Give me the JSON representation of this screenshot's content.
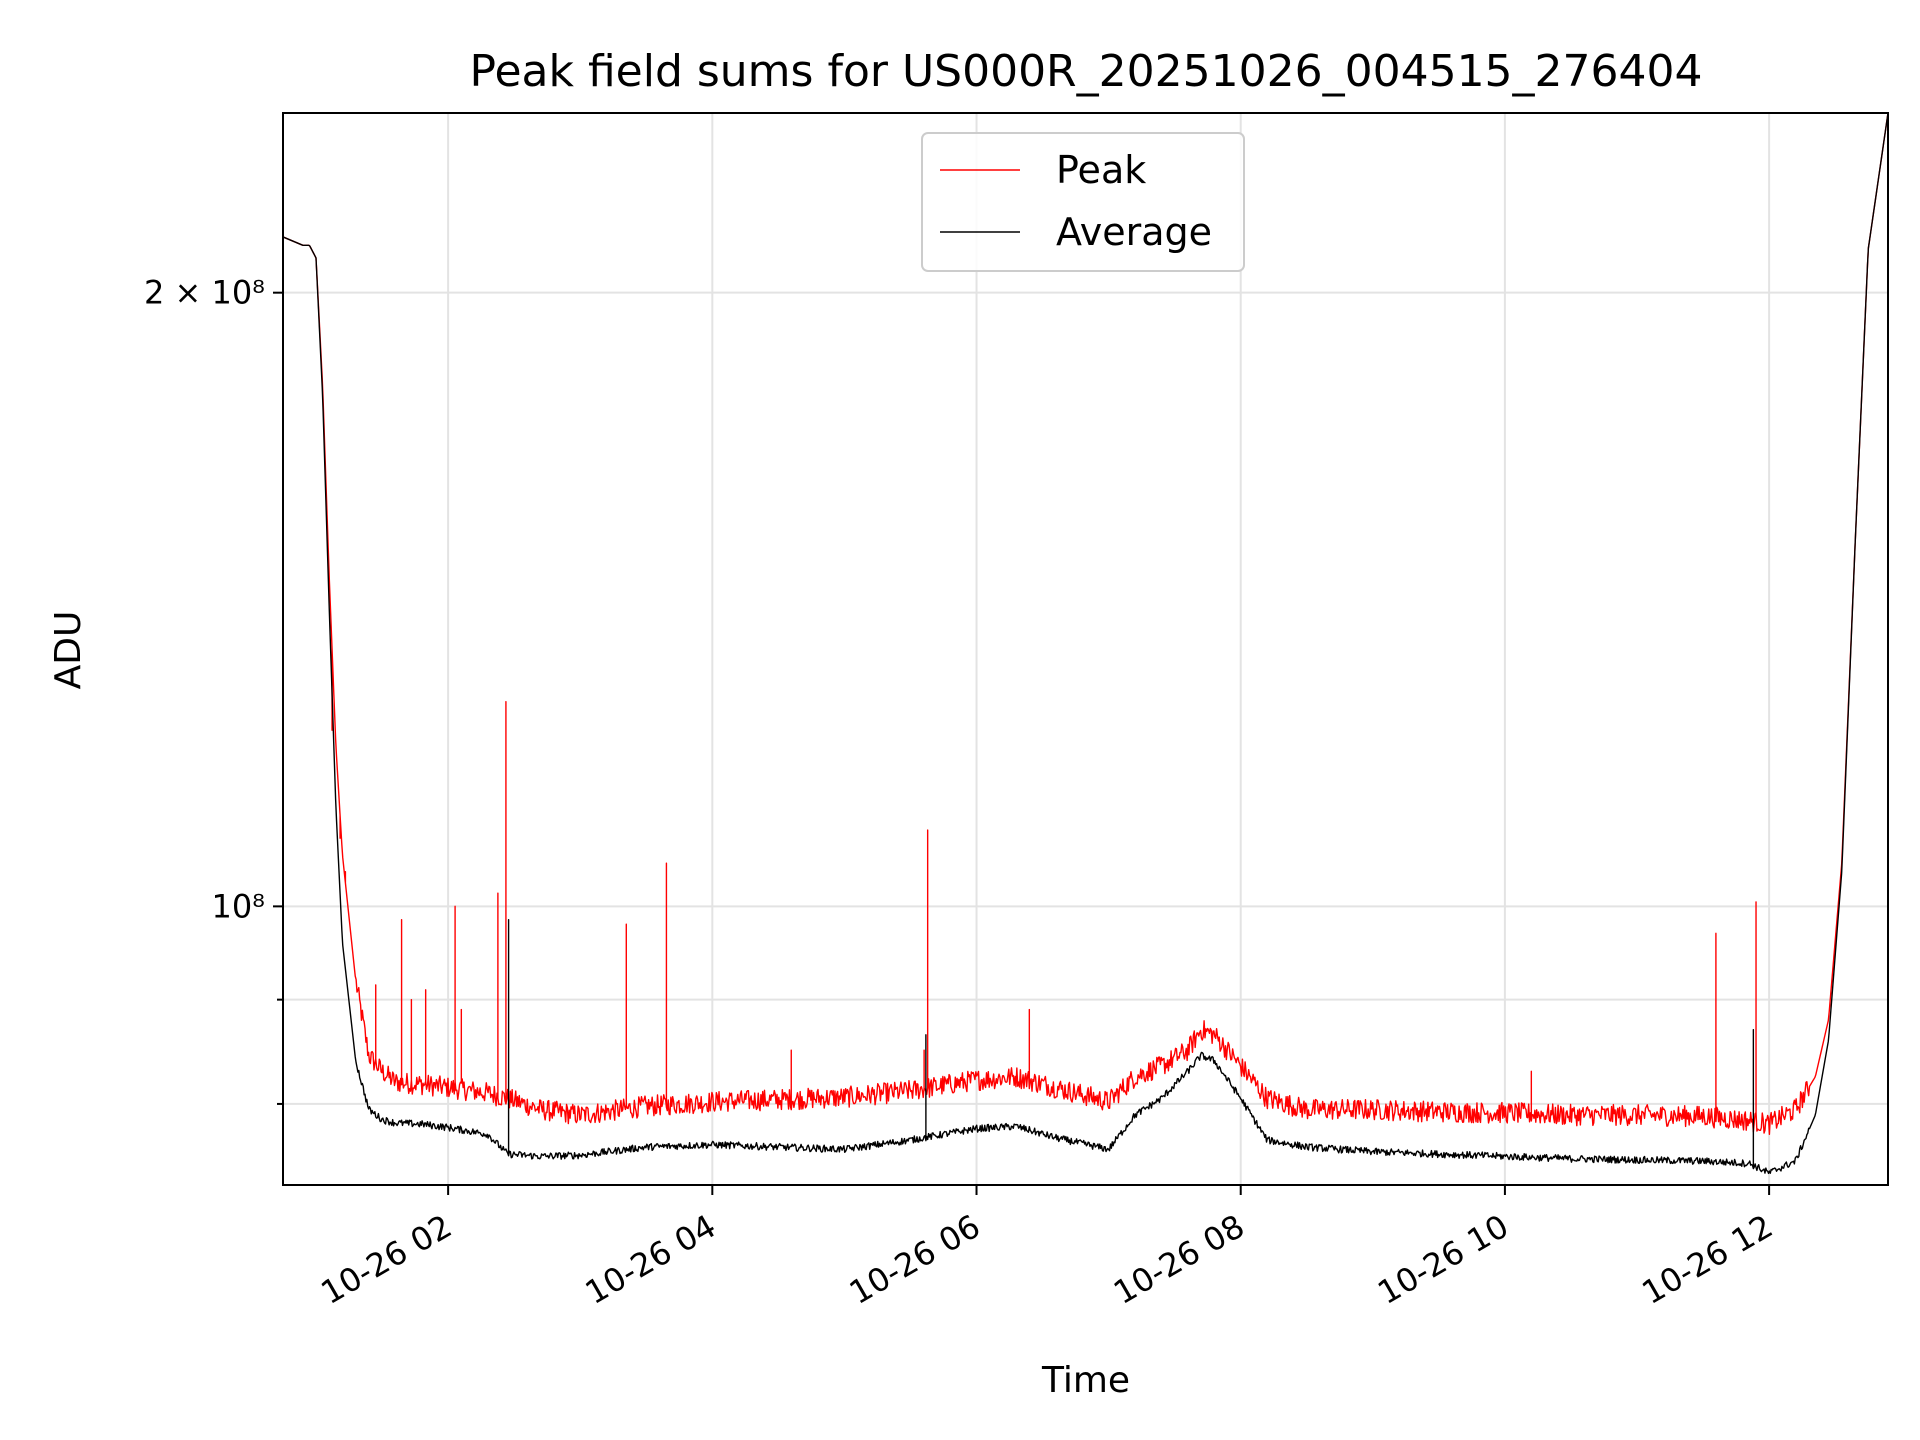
{
  "chart_data": {
    "type": "line",
    "title": "Peak field sums for US000R_20251026_004515_276404",
    "xlabel": "Time",
    "ylabel": "ADU",
    "yscale": "log",
    "grid": true,
    "legend_location": "upper-center",
    "xlim_hours": [
      0.75,
      12.9
    ],
    "ylim": [
      73000000,
      245000000
    ],
    "x_unit": "hours since 2025-10-26 00:00",
    "x_ticks": [
      {
        "value": 2,
        "label": "10-26 02"
      },
      {
        "value": 4,
        "label": "10-26 04"
      },
      {
        "value": 6,
        "label": "10-26 06"
      },
      {
        "value": 8,
        "label": "10-26 08"
      },
      {
        "value": 10,
        "label": "10-26 10"
      },
      {
        "value": 12,
        "label": "10-26 12"
      }
    ],
    "y_ticks": [
      {
        "value": 200000000,
        "label": "2 × 10⁸",
        "major": true
      },
      {
        "value": 100000000,
        "label": "10⁸",
        "major": true
      },
      {
        "value": 90000000,
        "label": "",
        "major": false
      },
      {
        "value": 80000000,
        "label": "",
        "major": false
      }
    ],
    "series": [
      {
        "name": "Peak",
        "color": "#ff0000",
        "x": [
          0.75,
          0.9,
          0.95,
          1.0,
          1.05,
          1.1,
          1.15,
          1.2,
          1.3,
          1.4,
          1.5,
          1.6,
          1.8,
          2.0,
          2.3,
          2.45,
          2.7,
          3.0,
          3.5,
          4.0,
          4.5,
          5.0,
          5.5,
          6.0,
          6.3,
          6.6,
          7.0,
          7.2,
          7.4,
          7.6,
          7.7,
          7.8,
          8.0,
          8.2,
          8.5,
          9.0,
          9.5,
          10.0,
          10.5,
          11.0,
          11.5,
          11.85,
          12.0,
          12.2,
          12.35,
          12.45,
          12.55,
          12.65,
          12.75,
          12.9
        ],
        "values": [
          213000000,
          211000000,
          211000000,
          208000000,
          180000000,
          145000000,
          120000000,
          106000000,
          92000000,
          84500000,
          83000000,
          82000000,
          81800000,
          81500000,
          81000000,
          80500000,
          79500000,
          79000000,
          79800000,
          80200000,
          80400000,
          80600000,
          81200000,
          82200000,
          82500000,
          81500000,
          80200000,
          82500000,
          83500000,
          85000000,
          87000000,
          86500000,
          83500000,
          80500000,
          79500000,
          79500000,
          79300000,
          79200000,
          79000000,
          79000000,
          78900000,
          78500000,
          78200000,
          79500000,
          82500000,
          88000000,
          105000000,
          150000000,
          210000000,
          245000000
        ],
        "spikes": [
          {
            "x": 1.12,
            "value": 122000000
          },
          {
            "x": 1.18,
            "value": 108000000
          },
          {
            "x": 1.22,
            "value": 104000000
          },
          {
            "x": 1.45,
            "value": 91500000
          },
          {
            "x": 1.65,
            "value": 98500000
          },
          {
            "x": 1.72,
            "value": 90000000
          },
          {
            "x": 1.83,
            "value": 91000000
          },
          {
            "x": 2.05,
            "value": 100000000
          },
          {
            "x": 2.1,
            "value": 89000000
          },
          {
            "x": 2.38,
            "value": 101500000
          },
          {
            "x": 2.44,
            "value": 126000000
          },
          {
            "x": 3.35,
            "value": 98000000
          },
          {
            "x": 3.65,
            "value": 105000000
          },
          {
            "x": 4.6,
            "value": 85000000
          },
          {
            "x": 5.6,
            "value": 85000000
          },
          {
            "x": 5.63,
            "value": 109000000
          },
          {
            "x": 6.4,
            "value": 89000000
          },
          {
            "x": 10.2,
            "value": 83000000
          },
          {
            "x": 11.6,
            "value": 97000000
          },
          {
            "x": 11.9,
            "value": 100500000
          }
        ]
      },
      {
        "name": "Average",
        "color": "#000000",
        "x": [
          0.75,
          0.9,
          0.95,
          1.0,
          1.05,
          1.1,
          1.15,
          1.2,
          1.3,
          1.4,
          1.5,
          1.6,
          1.8,
          2.0,
          2.3,
          2.45,
          2.7,
          3.0,
          3.5,
          4.0,
          4.5,
          5.0,
          5.5,
          6.0,
          6.3,
          6.6,
          7.0,
          7.2,
          7.4,
          7.6,
          7.7,
          7.8,
          8.0,
          8.2,
          8.5,
          9.0,
          9.5,
          10.0,
          10.5,
          11.0,
          11.5,
          11.85,
          12.0,
          12.2,
          12.35,
          12.45,
          12.55,
          12.65,
          12.75,
          12.9
        ],
        "values": [
          213000000,
          211000000,
          211000000,
          208000000,
          178000000,
          140000000,
          112000000,
          96000000,
          84000000,
          79500000,
          78600000,
          78300000,
          78200000,
          77900000,
          77300000,
          75600000,
          75400000,
          75500000,
          76200000,
          76400000,
          76200000,
          76000000,
          76800000,
          77800000,
          78000000,
          77000000,
          76000000,
          79000000,
          80500000,
          83000000,
          84500000,
          84000000,
          80500000,
          76800000,
          76200000,
          75800000,
          75600000,
          75400000,
          75200000,
          75100000,
          75000000,
          74800000,
          74000000,
          75000000,
          79000000,
          86000000,
          104000000,
          150000000,
          210000000,
          245000000
        ],
        "spikes": [
          {
            "x": 2.46,
            "value": 98500000
          },
          {
            "x": 5.62,
            "value": 86500000
          },
          {
            "x": 11.88,
            "value": 87000000
          }
        ]
      }
    ]
  }
}
